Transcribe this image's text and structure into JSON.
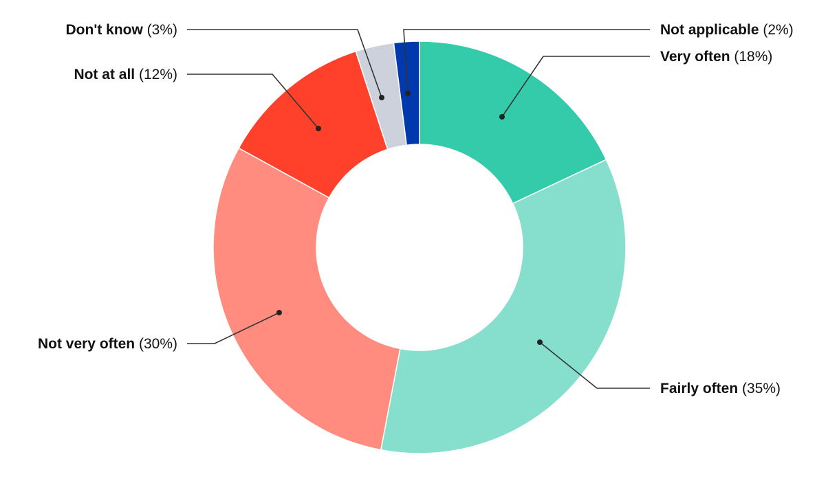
{
  "chart_data": {
    "type": "pie",
    "variant": "donut",
    "title": "",
    "slices": [
      {
        "label": "Very often",
        "value": 18,
        "pct_text": "(18%)",
        "color": "#33cbaa",
        "label_side": "right"
      },
      {
        "label": "Fairly often",
        "value": 35,
        "pct_text": "(35%)",
        "color": "#85dfcc",
        "label_side": "right"
      },
      {
        "label": "Not very often",
        "value": 30,
        "pct_text": "(30%)",
        "color": "#ff8c7e",
        "label_side": "left"
      },
      {
        "label": "Not at all",
        "value": 12,
        "pct_text": "(12%)",
        "color": "#ff412c",
        "label_side": "left"
      },
      {
        "label": "Don't know",
        "value": 3,
        "pct_text": "(3%)",
        "color": "#cdd1dc",
        "label_side": "left"
      },
      {
        "label": "Not applicable",
        "value": 2,
        "pct_text": "(2%)",
        "color": "#0039ae",
        "label_side": "right"
      }
    ],
    "start_position": "top",
    "direction": "clockwise"
  }
}
